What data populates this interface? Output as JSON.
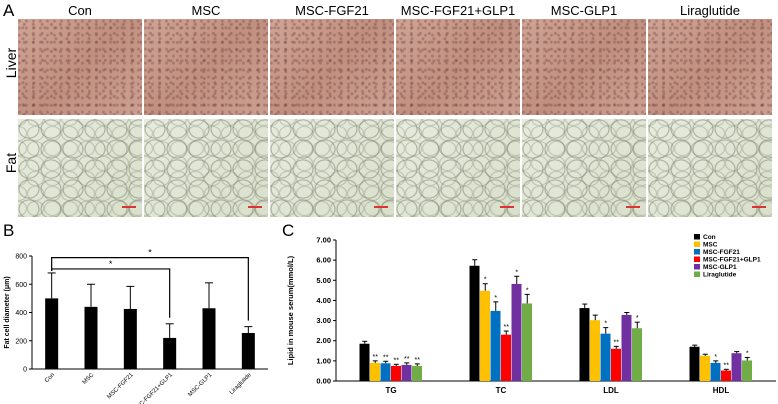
{
  "panel_a": {
    "letter": "A",
    "columns": [
      "Con",
      "MSC",
      "MSC-FGF21",
      "MSC-FGF21+GLP1",
      "MSC-GLP1",
      "Liraglutide"
    ],
    "rows": [
      "Liver",
      "Fat"
    ]
  },
  "panel_b": {
    "letter": "B",
    "significance_marks": [
      "*",
      "*"
    ]
  },
  "panel_c": {
    "letter": "C",
    "legend": [
      "Con",
      "MSC",
      "MSC-FGF21",
      "MSC-FGF21+GLP1",
      "MSC-GLP1",
      "Liraglutide"
    ]
  },
  "colors": {
    "con": "#000000",
    "msc": "#ffc000",
    "fgf21": "#0070c0",
    "fgf21_glp1": "#ff0000",
    "glp1": "#7030a0",
    "liraglutide": "#70ad47"
  },
  "chart_data": [
    {
      "type": "bar",
      "title": "",
      "ylabel": "Fat cell diameter (μm)",
      "xlabel": "",
      "categories": [
        "Con",
        "MSC",
        "MSC-FGF21",
        "MSC-FGF21+GLP1",
        "MSC-GLP1",
        "Liraglutide"
      ],
      "values": [
        500,
        440,
        425,
        220,
        430,
        255
      ],
      "errors": [
        180,
        160,
        160,
        100,
        180,
        45
      ],
      "ylim": [
        0,
        800
      ],
      "yticks": [
        "0",
        "200",
        "400",
        "600",
        "800"
      ],
      "bar_color": "#000000",
      "significance": [
        {
          "from": "Con",
          "to": "MSC-FGF21+GLP1",
          "label": "*"
        },
        {
          "from": "Con",
          "to": "Liraglutide",
          "label": "*"
        }
      ]
    },
    {
      "type": "bar",
      "title": "",
      "ylabel": "Lipid in mouse serum(mmol/L)",
      "xlabel": "",
      "categories": [
        "TG",
        "TC",
        "LDL",
        "HDL"
      ],
      "ylim": [
        0,
        7
      ],
      "yticks": [
        "0.00",
        "1.00",
        "2.00",
        "3.00",
        "4.00",
        "5.00",
        "6.00",
        "7.00"
      ],
      "legend_position": "top-right",
      "series": [
        {
          "name": "Con",
          "values": [
            1.85,
            5.72,
            3.62,
            1.7
          ],
          "errors": [
            0.12,
            0.3,
            0.2,
            0.08
          ],
          "marks": [
            "",
            "",
            "",
            ""
          ]
        },
        {
          "name": "MSC",
          "values": [
            0.9,
            4.48,
            3.02,
            1.25
          ],
          "errors": [
            0.1,
            0.35,
            0.25,
            0.08
          ],
          "marks": [
            "**",
            "*",
            "",
            ""
          ]
        },
        {
          "name": "MSC-FGF21",
          "values": [
            0.88,
            3.48,
            2.35,
            0.9
          ],
          "errors": [
            0.1,
            0.45,
            0.3,
            0.1
          ],
          "marks": [
            "**",
            "*",
            "*",
            "*"
          ]
        },
        {
          "name": "MSC-FGF21+GLP1",
          "values": [
            0.75,
            2.3,
            1.6,
            0.52
          ],
          "errors": [
            0.08,
            0.18,
            0.12,
            0.06
          ],
          "marks": [
            "**",
            "**",
            "**",
            "**"
          ]
        },
        {
          "name": "MSC-GLP1",
          "values": [
            0.8,
            4.82,
            3.28,
            1.38
          ],
          "errors": [
            0.1,
            0.38,
            0.12,
            0.08
          ],
          "marks": [
            "**",
            "*",
            "",
            ""
          ]
        },
        {
          "name": "Liraglutide",
          "values": [
            0.75,
            3.85,
            2.62,
            1.02
          ],
          "errors": [
            0.1,
            0.45,
            0.3,
            0.15
          ],
          "marks": [
            "**",
            "*",
            "*",
            "*"
          ]
        }
      ]
    }
  ]
}
